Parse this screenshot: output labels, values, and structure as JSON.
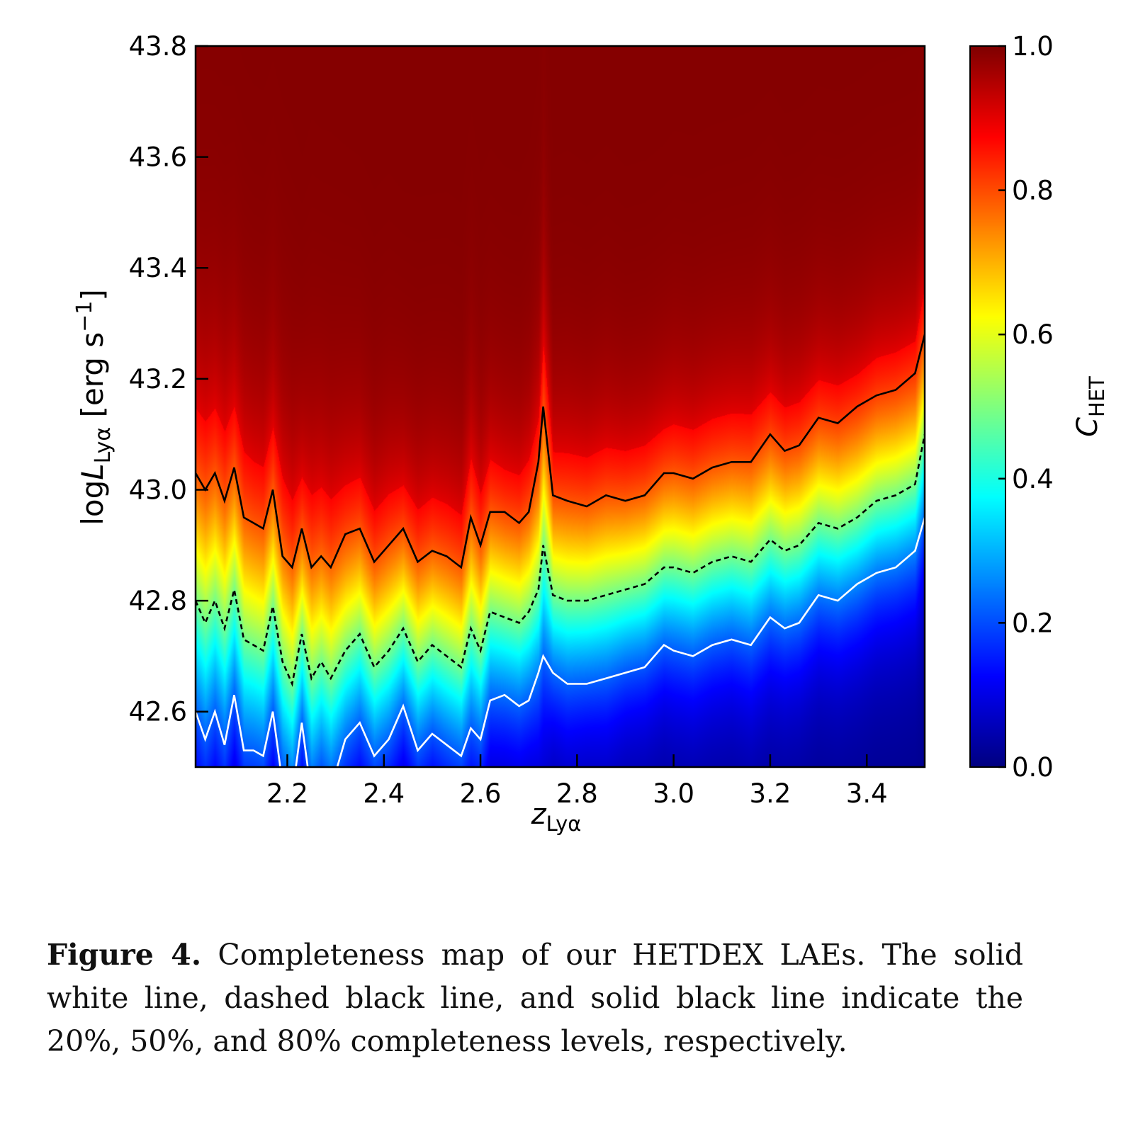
{
  "chart_data": {
    "type": "heatmap",
    "xlabel": "z_Lyα",
    "ylabel": "logL_Lyα [erg s^-1]",
    "xlim": [
      2.01,
      3.52
    ],
    "ylim": [
      42.5,
      43.8
    ],
    "xticks": [
      "2.2",
      "2.4",
      "2.6",
      "2.8",
      "3.0",
      "3.2",
      "3.4"
    ],
    "yticks": [
      "42.6",
      "42.8",
      "43.0",
      "43.2",
      "43.4",
      "43.6",
      "43.8"
    ],
    "colorbar": {
      "label": "C_HET",
      "range": [
        0.0,
        1.0
      ],
      "ticks": [
        "0.0",
        "0.2",
        "0.4",
        "0.6",
        "0.8",
        "1.0"
      ],
      "colormap": "jet"
    },
    "grid": false,
    "x": [
      2.01,
      2.03,
      2.05,
      2.07,
      2.09,
      2.11,
      2.13,
      2.15,
      2.17,
      2.19,
      2.21,
      2.23,
      2.25,
      2.27,
      2.29,
      2.32,
      2.35,
      2.38,
      2.41,
      2.44,
      2.47,
      2.5,
      2.53,
      2.56,
      2.58,
      2.6,
      2.62,
      2.65,
      2.68,
      2.7,
      2.72,
      2.73,
      2.75,
      2.78,
      2.82,
      2.86,
      2.9,
      2.94,
      2.98,
      3.0,
      3.04,
      3.08,
      3.12,
      3.16,
      3.2,
      3.23,
      3.26,
      3.3,
      3.34,
      3.38,
      3.42,
      3.46,
      3.5,
      3.52
    ],
    "series": [
      {
        "level": "80%",
        "style": "solid black",
        "values": [
          43.03,
          43.0,
          43.03,
          42.98,
          43.04,
          42.95,
          42.94,
          42.93,
          43.0,
          42.88,
          42.86,
          42.93,
          42.86,
          42.88,
          42.86,
          42.92,
          42.93,
          42.87,
          42.9,
          42.93,
          42.87,
          42.89,
          42.88,
          42.86,
          42.95,
          42.9,
          42.96,
          42.96,
          42.94,
          42.96,
          43.05,
          43.15,
          42.99,
          42.98,
          42.97,
          42.99,
          42.98,
          42.99,
          43.03,
          43.03,
          43.02,
          43.04,
          43.05,
          43.05,
          43.1,
          43.07,
          43.08,
          43.13,
          43.12,
          43.15,
          43.17,
          43.18,
          43.21,
          43.28
        ]
      },
      {
        "level": "50%",
        "style": "dashed black",
        "values": [
          42.8,
          42.76,
          42.8,
          42.75,
          42.82,
          42.73,
          42.72,
          42.71,
          42.79,
          42.69,
          42.65,
          42.74,
          42.66,
          42.69,
          42.66,
          42.71,
          42.74,
          42.68,
          42.71,
          42.75,
          42.69,
          42.72,
          42.7,
          42.68,
          42.75,
          42.71,
          42.78,
          42.77,
          42.76,
          42.78,
          42.82,
          42.9,
          42.81,
          42.8,
          42.8,
          42.81,
          42.82,
          42.83,
          42.86,
          42.86,
          42.85,
          42.87,
          42.88,
          42.87,
          42.91,
          42.89,
          42.9,
          42.94,
          42.93,
          42.95,
          42.98,
          42.99,
          43.01,
          43.1
        ]
      },
      {
        "level": "20%",
        "style": "solid white",
        "values": [
          42.6,
          42.55,
          42.6,
          42.54,
          42.63,
          42.53,
          42.53,
          42.52,
          42.6,
          42.47,
          42.45,
          42.58,
          42.45,
          42.49,
          42.46,
          42.55,
          42.58,
          42.52,
          42.55,
          42.61,
          42.53,
          42.56,
          42.54,
          42.52,
          42.57,
          42.55,
          42.62,
          42.63,
          42.61,
          42.62,
          42.67,
          42.7,
          42.67,
          42.65,
          42.65,
          42.66,
          42.67,
          42.68,
          42.72,
          42.71,
          42.7,
          42.72,
          42.73,
          42.72,
          42.77,
          42.75,
          42.76,
          42.81,
          42.8,
          42.83,
          42.85,
          42.86,
          42.89,
          42.95
        ]
      }
    ]
  },
  "caption": {
    "label": "Figure 4.",
    "text": "Completeness map of our HETDEX LAEs. The solid white line, dashed black line, and solid black line indicate the 20%, 50%, and 80% completeness levels, respectively."
  }
}
